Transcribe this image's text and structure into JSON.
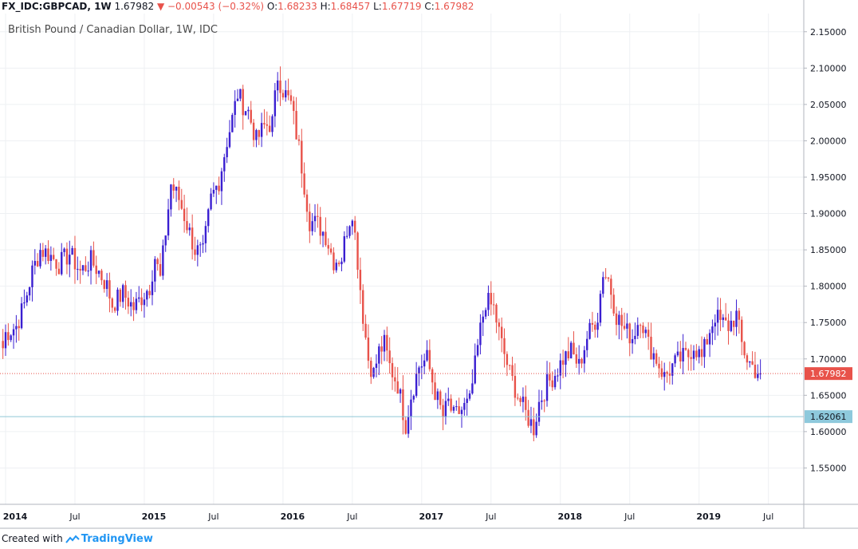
{
  "legend": {
    "symbol": "FX_IDC:GBPCAD, 1W",
    "last": "1.67982",
    "change": "−0.00543 (−0.32%)",
    "o_label": "O:",
    "o": "1.68233",
    "h_label": "H:",
    "h": "1.68457",
    "l_label": "L:",
    "l": "1.67719",
    "c_label": "C:",
    "c": "1.67982"
  },
  "footer": {
    "created_with": "Created with",
    "brand": "TradingView"
  },
  "colors": {
    "up": "#3a1fd1",
    "down": "#e8524a",
    "grid": "#eef0f3",
    "price_line": "#e8524a",
    "hline": "#8fc6d6",
    "hline_label_bg": "#8ec9dc"
  },
  "chart_data": {
    "type": "candlestick",
    "title": "British Pound / Canadian Dollar, 1W, IDC",
    "ylim": [
      1.5,
      2.175
    ],
    "y_ticks": [
      "1.55000",
      "1.60000",
      "1.65000",
      "1.70000",
      "1.75000",
      "1.80000",
      "1.85000",
      "1.90000",
      "1.95000",
      "2.00000",
      "2.05000",
      "2.10000",
      "2.15000"
    ],
    "x_ticks": [
      {
        "label": "2014",
        "week": 0,
        "bold": true
      },
      {
        "label": "Jul",
        "week": 26,
        "bold": false
      },
      {
        "label": "2015",
        "week": 52,
        "bold": true
      },
      {
        "label": "Jul",
        "week": 78,
        "bold": false
      },
      {
        "label": "2016",
        "week": 104,
        "bold": true
      },
      {
        "label": "Jul",
        "week": 130,
        "bold": false
      },
      {
        "label": "2017",
        "week": 156,
        "bold": true
      },
      {
        "label": "Jul",
        "week": 182,
        "bold": false
      },
      {
        "label": "2018",
        "week": 208,
        "bold": true
      },
      {
        "label": "Jul",
        "week": 234,
        "bold": false
      },
      {
        "label": "2019",
        "week": 260,
        "bold": true
      },
      {
        "label": "Jul",
        "week": 286,
        "bold": false
      }
    ],
    "last_price": "1.67982",
    "last_price_value": 1.67982,
    "horizontal_line": "1.62061",
    "horizontal_line_value": 1.62061,
    "weekly_close_estimate": [
      [
        -1,
        1.715
      ],
      [
        0,
        1.735
      ],
      [
        4,
        1.745
      ],
      [
        7,
        1.775
      ],
      [
        10,
        1.82
      ],
      [
        13,
        1.85
      ],
      [
        16,
        1.845
      ],
      [
        20,
        1.83
      ],
      [
        24,
        1.845
      ],
      [
        28,
        1.82
      ],
      [
        32,
        1.835
      ],
      [
        35,
        1.82
      ],
      [
        38,
        1.8
      ],
      [
        40,
        1.775
      ],
      [
        44,
        1.79
      ],
      [
        48,
        1.77
      ],
      [
        50,
        1.78
      ],
      [
        54,
        1.8
      ],
      [
        56,
        1.84
      ],
      [
        58,
        1.81
      ],
      [
        62,
        1.94
      ],
      [
        65,
        1.92
      ],
      [
        68,
        1.885
      ],
      [
        71,
        1.85
      ],
      [
        74,
        1.845
      ],
      [
        77,
        1.92
      ],
      [
        80,
        1.945
      ],
      [
        83,
        2.0
      ],
      [
        85,
        2.03
      ],
      [
        87,
        2.065
      ],
      [
        89,
        2.05
      ],
      [
        91,
        2.04
      ],
      [
        94,
        2.0
      ],
      [
        97,
        2.02
      ],
      [
        100,
        2.025
      ],
      [
        102,
        2.09
      ],
      [
        104,
        2.07
      ],
      [
        107,
        2.05
      ],
      [
        110,
        1.99
      ],
      [
        114,
        1.89
      ],
      [
        117,
        1.885
      ],
      [
        120,
        1.87
      ],
      [
        123,
        1.835
      ],
      [
        126,
        1.84
      ],
      [
        128,
        1.88
      ],
      [
        130,
        1.905
      ],
      [
        132,
        1.835
      ],
      [
        134,
        1.76
      ],
      [
        136,
        1.7
      ],
      [
        138,
        1.68
      ],
      [
        140,
        1.71
      ],
      [
        142,
        1.72
      ],
      [
        144,
        1.69
      ],
      [
        147,
        1.665
      ],
      [
        150,
        1.61
      ],
      [
        152,
        1.65
      ],
      [
        155,
        1.69
      ],
      [
        158,
        1.7
      ],
      [
        161,
        1.655
      ],
      [
        164,
        1.62
      ],
      [
        166,
        1.64
      ],
      [
        168,
        1.62
      ],
      [
        171,
        1.63
      ],
      [
        174,
        1.64
      ],
      [
        178,
        1.74
      ],
      [
        180,
        1.78
      ],
      [
        183,
        1.77
      ],
      [
        186,
        1.72
      ],
      [
        189,
        1.68
      ],
      [
        192,
        1.65
      ],
      [
        195,
        1.625
      ],
      [
        198,
        1.605
      ],
      [
        200,
        1.64
      ],
      [
        203,
        1.665
      ],
      [
        206,
        1.68
      ],
      [
        209,
        1.7
      ],
      [
        212,
        1.71
      ],
      [
        215,
        1.69
      ],
      [
        218,
        1.73
      ],
      [
        222,
        1.76
      ],
      [
        224,
        1.82
      ],
      [
        226,
        1.81
      ],
      [
        229,
        1.76
      ],
      [
        232,
        1.74
      ],
      [
        235,
        1.73
      ],
      [
        238,
        1.76
      ],
      [
        241,
        1.72
      ],
      [
        244,
        1.7
      ],
      [
        247,
        1.675
      ],
      [
        250,
        1.69
      ],
      [
        253,
        1.7
      ],
      [
        256,
        1.705
      ],
      [
        258,
        1.72
      ],
      [
        261,
        1.7
      ],
      [
        264,
        1.74
      ],
      [
        266,
        1.76
      ],
      [
        268,
        1.75
      ],
      [
        271,
        1.745
      ],
      [
        274,
        1.76
      ],
      [
        276,
        1.72
      ],
      [
        278,
        1.7
      ],
      [
        281,
        1.685
      ],
      [
        283,
        1.68
      ]
    ]
  }
}
